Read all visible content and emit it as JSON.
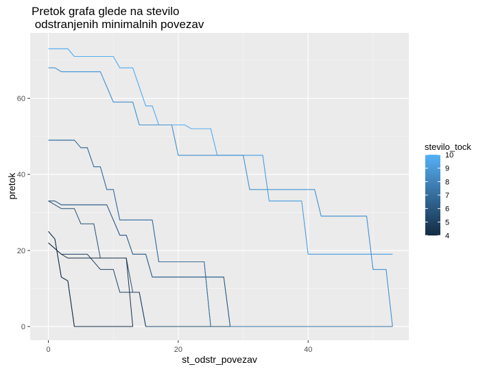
{
  "chart_data": {
    "type": "line",
    "title_line1": "Pretok grafa glede na stevilo",
    "title_line2": " odstranjenih minimalnih povezav",
    "xlabel": "st_odstr_povezav",
    "ylabel": "pretok",
    "xlim": [
      -2.8,
      55.5
    ],
    "ylim": [
      -3.6,
      77.2
    ],
    "x_ticks": [
      0,
      20,
      40
    ],
    "y_ticks": [
      0,
      20,
      40,
      60
    ],
    "grid": true,
    "legend": {
      "title": "stevilo_tock",
      "placement": "right",
      "min": 4,
      "max": 10,
      "labels": [
        10,
        9,
        8,
        7,
        6,
        5,
        4
      ],
      "low_color": "#132B43",
      "high_color": "#56B1F7"
    },
    "series": [
      {
        "stevilo_tock": 10,
        "points": [
          [
            0,
            73
          ],
          [
            3,
            73
          ],
          [
            4,
            71
          ],
          [
            10,
            71
          ],
          [
            11,
            68
          ],
          [
            13,
            68
          ],
          [
            15,
            58
          ],
          [
            16,
            58
          ],
          [
            17,
            53
          ],
          [
            21,
            53
          ],
          [
            22,
            52
          ],
          [
            25,
            52
          ],
          [
            26,
            45
          ],
          [
            33,
            45
          ],
          [
            34,
            33
          ],
          [
            39,
            33
          ],
          [
            40,
            19
          ],
          [
            53,
            19
          ]
        ]
      },
      {
        "stevilo_tock": 9.8,
        "points": [
          [
            0,
            73
          ],
          [
            3,
            73
          ],
          [
            4,
            71
          ],
          [
            10,
            71
          ],
          [
            11,
            68
          ],
          [
            13,
            68
          ],
          [
            15,
            58
          ],
          [
            16,
            58
          ],
          [
            17,
            53
          ],
          [
            21,
            53
          ],
          [
            22,
            52
          ],
          [
            25,
            52
          ],
          [
            26,
            45
          ],
          [
            30,
            45
          ],
          [
            31,
            36
          ],
          [
            41,
            36
          ],
          [
            42,
            29
          ],
          [
            49,
            29
          ],
          [
            50,
            15
          ],
          [
            52,
            15
          ],
          [
            53,
            0
          ]
        ]
      },
      {
        "stevilo_tock": 9.2,
        "points": [
          [
            0,
            68
          ],
          [
            1,
            68
          ],
          [
            2,
            67
          ],
          [
            8,
            67
          ],
          [
            10,
            59
          ],
          [
            13,
            59
          ],
          [
            14,
            53
          ],
          [
            19,
            53
          ],
          [
            20,
            45
          ],
          [
            33,
            45
          ],
          [
            34,
            33
          ],
          [
            39,
            33
          ],
          [
            40,
            19
          ],
          [
            53,
            19
          ]
        ]
      },
      {
        "stevilo_tock": 8.6,
        "points": [
          [
            0,
            68
          ],
          [
            1,
            68
          ],
          [
            2,
            67
          ],
          [
            8,
            67
          ],
          [
            10,
            59
          ],
          [
            13,
            59
          ],
          [
            14,
            53
          ],
          [
            19,
            53
          ],
          [
            20,
            45
          ],
          [
            30,
            45
          ],
          [
            31,
            36
          ],
          [
            41,
            36
          ],
          [
            42,
            29
          ],
          [
            49,
            29
          ],
          [
            50,
            15
          ],
          [
            52,
            15
          ],
          [
            53,
            0
          ]
        ]
      },
      {
        "stevilo_tock": 7.3,
        "points": [
          [
            0,
            49
          ],
          [
            4,
            49
          ],
          [
            5,
            47
          ],
          [
            6,
            47
          ],
          [
            7,
            42
          ],
          [
            8,
            42
          ],
          [
            9,
            36
          ],
          [
            10,
            36
          ],
          [
            11,
            28
          ],
          [
            16,
            28
          ],
          [
            17,
            17
          ],
          [
            24,
            17
          ],
          [
            25,
            0
          ],
          [
            53,
            0
          ]
        ]
      },
      {
        "stevilo_tock": 7.0,
        "points": [
          [
            0,
            49
          ],
          [
            4,
            49
          ],
          [
            5,
            47
          ],
          [
            6,
            47
          ],
          [
            7,
            42
          ],
          [
            8,
            42
          ],
          [
            9,
            36
          ],
          [
            10,
            36
          ],
          [
            11,
            28
          ],
          [
            16,
            28
          ],
          [
            17,
            17
          ],
          [
            24,
            17
          ],
          [
            25,
            0
          ]
        ]
      },
      {
        "stevilo_tock": 6.6,
        "points": [
          [
            0,
            33
          ],
          [
            1,
            33
          ],
          [
            2,
            32
          ],
          [
            9,
            32
          ],
          [
            11,
            24
          ],
          [
            12,
            24
          ],
          [
            13,
            19
          ],
          [
            15,
            19
          ],
          [
            16,
            13
          ],
          [
            27,
            13
          ],
          [
            28,
            0
          ]
        ]
      },
      {
        "stevilo_tock": 6.3,
        "points": [
          [
            0,
            33
          ],
          [
            1,
            33
          ],
          [
            2,
            32
          ],
          [
            9,
            32
          ],
          [
            11,
            24
          ],
          [
            12,
            24
          ],
          [
            13,
            19
          ],
          [
            15,
            19
          ],
          [
            16,
            13
          ],
          [
            27,
            13
          ],
          [
            28,
            0
          ]
        ]
      },
      {
        "stevilo_tock": 5.6,
        "points": [
          [
            0,
            33
          ],
          [
            1,
            32
          ],
          [
            2,
            31
          ],
          [
            4,
            31
          ],
          [
            5,
            27
          ],
          [
            7,
            27
          ],
          [
            8,
            18
          ],
          [
            12,
            18
          ],
          [
            13,
            9
          ],
          [
            14,
            9
          ],
          [
            15,
            0
          ],
          [
            28,
            0
          ]
        ]
      },
      {
        "stevilo_tock": 5.0,
        "points": [
          [
            0,
            22
          ],
          [
            2,
            19
          ],
          [
            6,
            19
          ],
          [
            8,
            15
          ],
          [
            10,
            15
          ],
          [
            11,
            9
          ],
          [
            14,
            9
          ],
          [
            15,
            0
          ]
        ]
      },
      {
        "stevilo_tock": 4.5,
        "points": [
          [
            0,
            25
          ],
          [
            1,
            23
          ],
          [
            2,
            13
          ],
          [
            3,
            12
          ],
          [
            4,
            0
          ],
          [
            13,
            0
          ]
        ]
      },
      {
        "stevilo_tock": 4.2,
        "points": [
          [
            0,
            25
          ],
          [
            1,
            23
          ],
          [
            2,
            13
          ],
          [
            3,
            12
          ],
          [
            4,
            0
          ],
          [
            13,
            0
          ]
        ]
      },
      {
        "stevilo_tock": 4.0,
        "points": [
          [
            0,
            22
          ],
          [
            2,
            19
          ],
          [
            3,
            18
          ],
          [
            12,
            18
          ],
          [
            13,
            0
          ]
        ]
      }
    ]
  }
}
